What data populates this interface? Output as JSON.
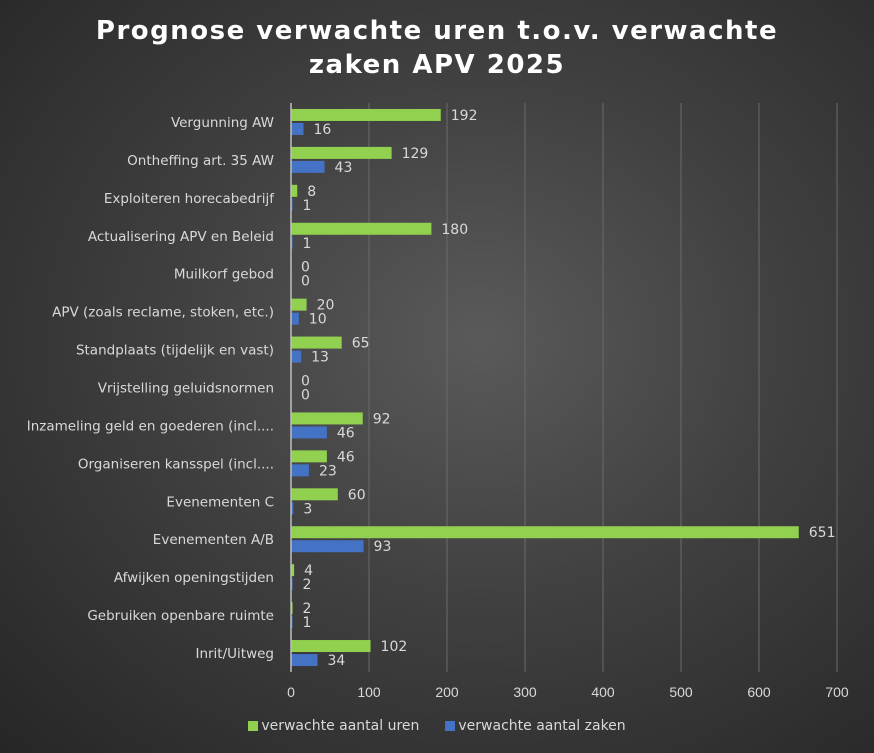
{
  "chart_data": {
    "type": "bar",
    "orientation": "horizontal",
    "title": "Prognose verwachte uren t.o.v. verwachte zaken APV 2025",
    "title_lines": [
      "Prognose verwachte uren t.o.v. verwachte",
      "zaken APV 2025"
    ],
    "categories": [
      "Vergunning AW",
      "Ontheffing art. 35 AW",
      "Exploiteren horecabedrijf",
      "Actualisering APV en Beleid",
      "Muilkorf gebod",
      "APV (zoals reclame, stoken, etc.)",
      "Standplaats (tijdelijk en vast)",
      "Vrijstelling geluidsnormen",
      "Inzameling geld en goederen (incl....",
      "Organiseren kansspel (incl....",
      "Evenementen C",
      "Evenementen A/B",
      "Afwijken openingstijden",
      "Gebruiken openbare ruimte",
      "Inrit/Uitweg"
    ],
    "series": [
      {
        "name": "verwachte aantal uren",
        "color": "#92d050",
        "values": [
          192,
          129,
          8,
          180,
          0,
          20,
          65,
          0,
          92,
          46,
          60,
          651,
          4,
          2,
          102
        ]
      },
      {
        "name": "verwachte aantal zaken",
        "color": "#4472c4",
        "values": [
          16,
          43,
          1,
          1,
          0,
          10,
          13,
          0,
          46,
          23,
          3,
          93,
          2,
          1,
          34
        ]
      }
    ],
    "xlim": [
      0,
      700
    ],
    "xticks": [
      "0",
      "100",
      "200",
      "300",
      "400",
      "500",
      "600",
      "700"
    ],
    "grid": "vertical",
    "legend": "bottom",
    "background": "#404040"
  }
}
